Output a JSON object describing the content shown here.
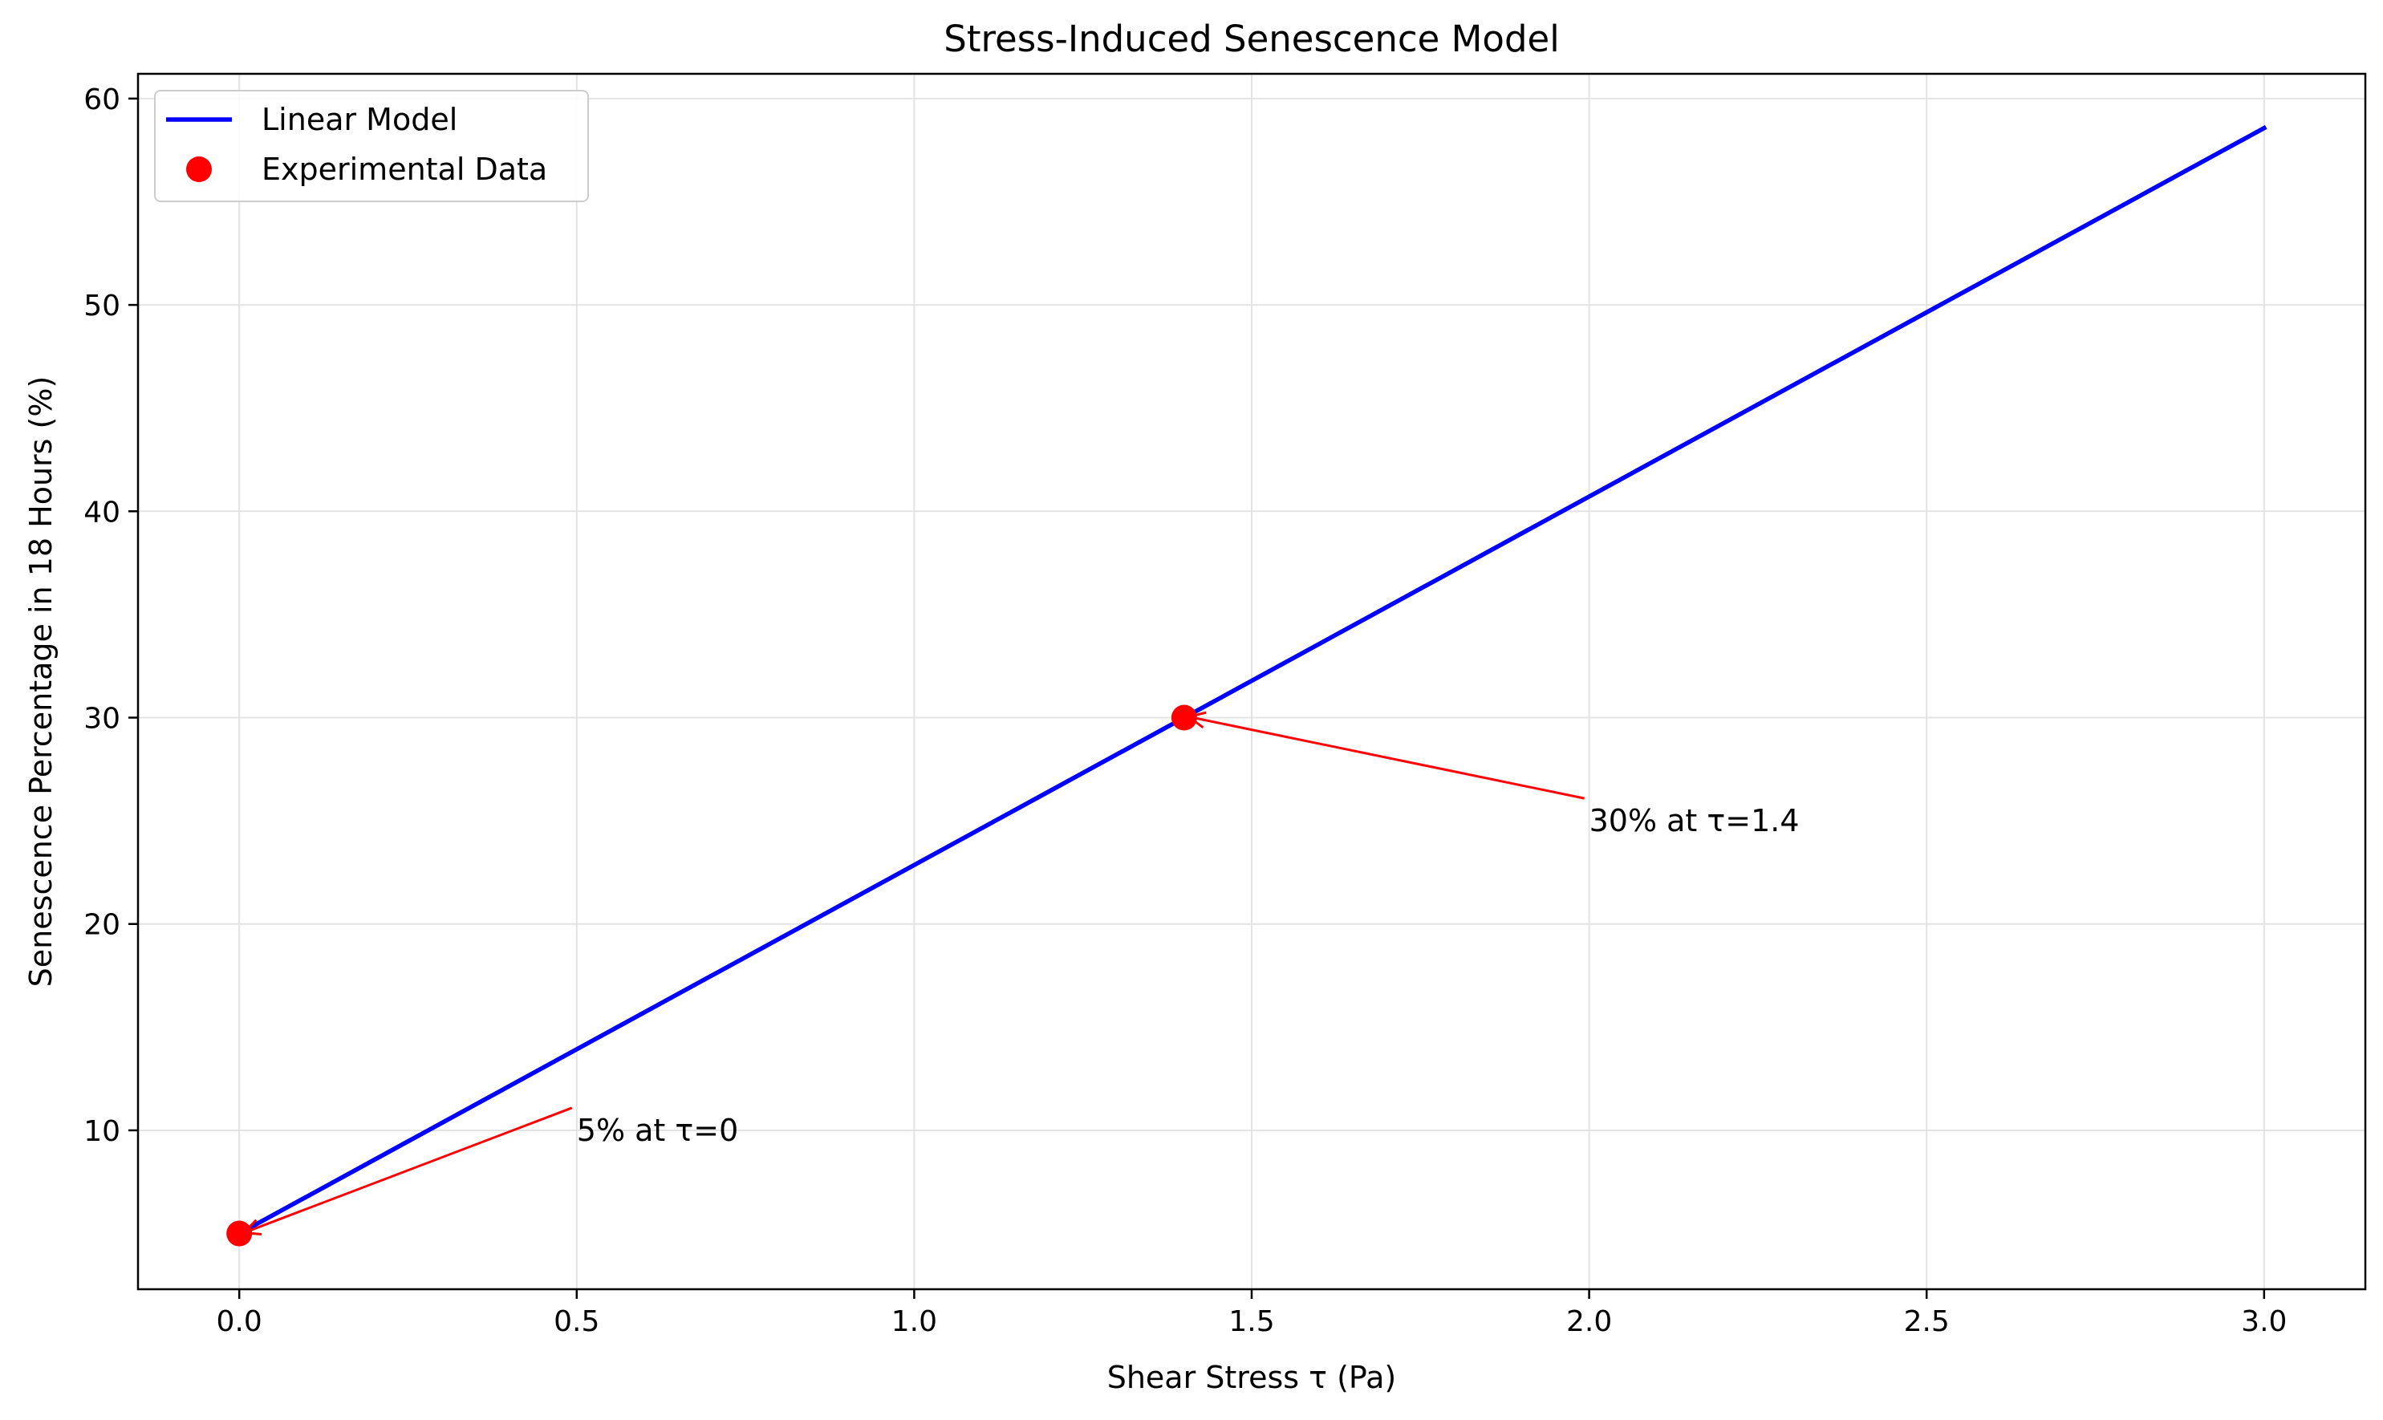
{
  "chart_data": {
    "type": "line",
    "title": "Stress-Induced Senescence Model",
    "xlabel": "Shear Stress τ (Pa)",
    "ylabel": "Senescence Percentage in 18 Hours (%)",
    "xlim": [
      -0.15,
      3.15
    ],
    "ylim": [
      2.3,
      61.2
    ],
    "xticks": [
      0.0,
      0.5,
      1.0,
      1.5,
      2.0,
      2.5,
      3.0
    ],
    "xtick_labels": [
      "0.0",
      "0.5",
      "1.0",
      "1.5",
      "2.0",
      "2.5",
      "3.0"
    ],
    "yticks": [
      10,
      20,
      30,
      40,
      50,
      60
    ],
    "ytick_labels": [
      "10",
      "20",
      "30",
      "40",
      "50",
      "60"
    ],
    "grid": true,
    "legend_position": "top-left",
    "series": [
      {
        "name": "Linear Model",
        "kind": "line",
        "color": "#0000ff",
        "x": [
          0.0,
          3.0
        ],
        "y": [
          5.0,
          58.57
        ]
      },
      {
        "name": "Experimental Data",
        "kind": "scatter",
        "color": "#ff0000",
        "x": [
          0.0,
          1.4
        ],
        "y": [
          5.0,
          30.0
        ]
      }
    ],
    "annotations": [
      {
        "text": "5% at τ=0",
        "point": [
          0.0,
          5.0
        ],
        "text_at": [
          0.5,
          10.0
        ],
        "color": "#ff0000"
      },
      {
        "text": "30% at τ=1.4",
        "point": [
          1.4,
          30.0
        ],
        "text_at": [
          2.0,
          25.0
        ],
        "color": "#ff0000"
      }
    ]
  }
}
